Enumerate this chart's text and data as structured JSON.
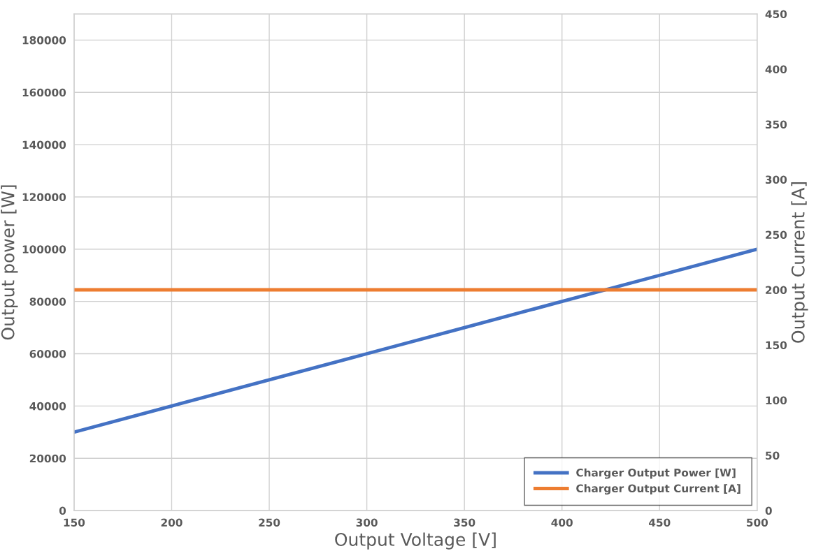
{
  "chart_data": {
    "type": "line",
    "xlabel": "Output Voltage [V]",
    "ylabel": "Output power [W]",
    "y2label": "Output Current [A]",
    "x": [
      150,
      200,
      250,
      300,
      350,
      400,
      450,
      500
    ],
    "series": [
      {
        "name": "Charger Output Power [W]",
        "color": "#4472c4",
        "values": [
          30000,
          40000,
          50000,
          60000,
          70000,
          80000,
          90000,
          100000
        ]
      },
      {
        "name": "Charger Output Current [A]",
        "color": "#ed7d31",
        "axis": "y2",
        "values": [
          200,
          200,
          200,
          200,
          200,
          200,
          200,
          200
        ]
      }
    ],
    "xlim": [
      150,
      500
    ],
    "xticks": [
      150,
      200,
      250,
      300,
      350,
      400,
      450,
      500
    ],
    "ylim": [
      0,
      190000
    ],
    "yticks": [
      0,
      20000,
      40000,
      60000,
      80000,
      100000,
      120000,
      140000,
      160000,
      180000
    ],
    "y2lim": [
      0,
      450
    ],
    "y2ticks": [
      0,
      50,
      100,
      150,
      200,
      250,
      300,
      350,
      400,
      450
    ],
    "grid": true,
    "legend": "bottom right",
    "marker": "none",
    "line_style": "solid"
  }
}
